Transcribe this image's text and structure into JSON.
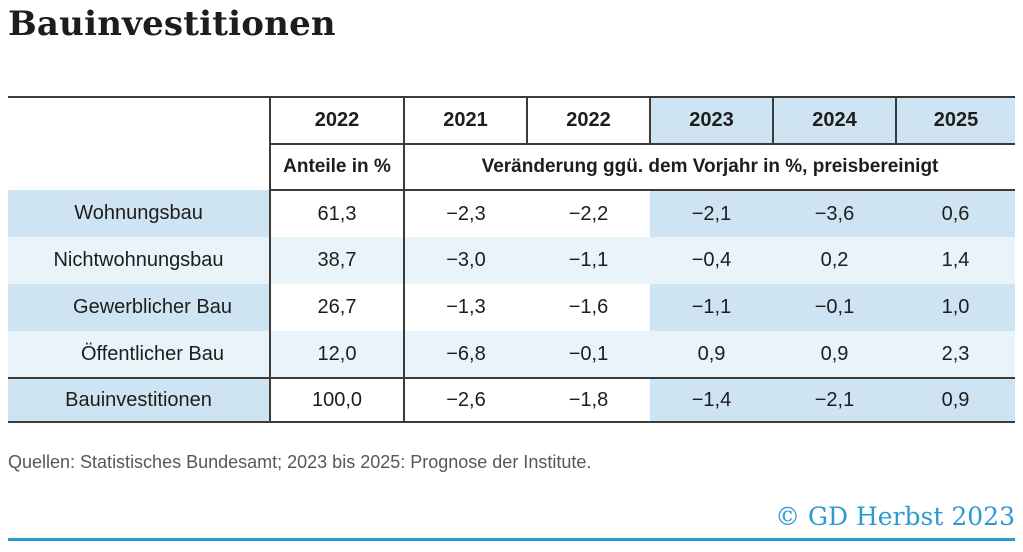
{
  "title": "Bauinvestitionen",
  "table": {
    "header": {
      "years": [
        "2022",
        "2021",
        "2022",
        "2023",
        "2024",
        "2025"
      ],
      "anteile_label": "Anteile in %",
      "change_label": "Veränderung ggü. dem Vorjahr in %, preisbereinigt"
    },
    "rows": [
      {
        "label": "Wohnungsbau",
        "values": [
          "61,3",
          "−2,3",
          "−2,2",
          "−2,1",
          "−3,6",
          "0,6"
        ]
      },
      {
        "label": "Nichtwohnungsbau",
        "values": [
          "38,7",
          "−3,0",
          "−1,1",
          "−0,4",
          "0,2",
          "1,4"
        ]
      },
      {
        "label": "Gewerblicher Bau",
        "values": [
          "26,7",
          "−1,3",
          "−1,6",
          "−1,1",
          "−0,1",
          "1,0"
        ]
      },
      {
        "label": "Öffentlicher Bau",
        "values": [
          "12,0",
          "−6,8",
          "−0,1",
          "0,9",
          "0,9",
          "2,3"
        ]
      },
      {
        "label": "Bauinvestitionen",
        "values": [
          "100,0",
          "−2,6",
          "−1,8",
          "−1,4",
          "−2,1",
          "0,9"
        ]
      }
    ]
  },
  "source": "Quellen: Statistisches Bundesamt; 2023 bis 2025: Prognose der Institute.",
  "copyright": "© GD Herbst 2023",
  "colors": {
    "shade_medium": "#cfe4f2",
    "shade_pale": "#e9f3fa",
    "rule_dark": "#3b3b3a",
    "accent_blue": "#2b9ad2",
    "source_gray": "#575756"
  },
  "chart_data": {
    "type": "table",
    "title": "Bauinvestitionen",
    "columns": [
      "",
      "2022 – Anteile in %",
      "2021",
      "2022",
      "2023",
      "2024",
      "2025"
    ],
    "column_note": "Spalten 2021–2025: Veränderung ggü. dem Vorjahr in %, preisbereinigt; 2023–2025 Prognose (blau hinterlegt)",
    "rows": [
      {
        "label": "Wohnungsbau",
        "anteil_2022": 61.3,
        "v2021": -2.3,
        "v2022": -2.2,
        "v2023": -2.1,
        "v2024": -3.6,
        "v2025": 0.6
      },
      {
        "label": "Nichtwohnungsbau",
        "anteil_2022": 38.7,
        "v2021": -3.0,
        "v2022": -1.1,
        "v2023": -0.4,
        "v2024": 0.2,
        "v2025": 1.4
      },
      {
        "label": "Gewerblicher Bau",
        "anteil_2022": 26.7,
        "v2021": -1.3,
        "v2022": -1.6,
        "v2023": -1.1,
        "v2024": -0.1,
        "v2025": 1.0
      },
      {
        "label": "Öffentlicher Bau",
        "anteil_2022": 12.0,
        "v2021": -6.8,
        "v2022": -0.1,
        "v2023": 0.9,
        "v2024": 0.9,
        "v2025": 2.3
      },
      {
        "label": "Bauinvestitionen",
        "anteil_2022": 100.0,
        "v2021": -2.6,
        "v2022": -1.8,
        "v2023": -1.4,
        "v2024": -2.1,
        "v2025": 0.9
      }
    ],
    "source": "Statistisches Bundesamt; 2023 bis 2025: Prognose der Institute",
    "attribution": "GD Herbst 2023"
  }
}
